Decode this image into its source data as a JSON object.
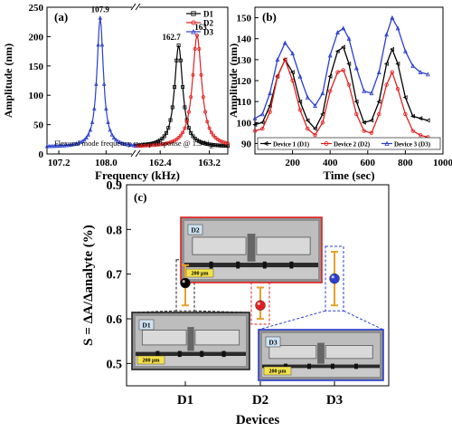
{
  "chart_data": [
    {
      "panel": "(a)",
      "type": "line",
      "xlabel": "Frequency (kHz)",
      "ylabel": "Amplitude (nm)",
      "ylim": [
        0,
        250
      ],
      "yticks": [
        "0",
        "50",
        "100",
        "150",
        "200",
        "250"
      ],
      "xlim_left": [
        107.0,
        108.5
      ],
      "xlim_right": [
        162.0,
        163.5
      ],
      "xticks_left": [
        "107.2",
        "108.0"
      ],
      "xticks_right": [
        "162.4",
        "163.2"
      ],
      "annotation": "Flexural mode frequency sweep response @ 1.5 V",
      "annotation_subscript": "ac",
      "legend": [
        "D1",
        "D2",
        "D3"
      ],
      "peak_labels": [
        "107.9",
        "162.7",
        "163"
      ],
      "series": [
        {
          "name": "D1",
          "color": "#000000",
          "marker": "square",
          "peak_x": 162.7,
          "peak_y": 185,
          "hwhm": 0.08,
          "base_y": 12
        },
        {
          "name": "D2",
          "color": "#e02020",
          "marker": "circle",
          "peak_x": 163.0,
          "peak_y": 202,
          "hwhm": 0.09,
          "base_y": 12
        },
        {
          "name": "D3",
          "color": "#2a3fcf",
          "marker": "triangle",
          "peak_x": 107.9,
          "peak_y": 232,
          "hwhm": 0.065,
          "base_y": 12
        }
      ]
    },
    {
      "panel": "(b)",
      "type": "line",
      "xlabel": "Time (sec)",
      "ylabel": "Amplitude (nm)",
      "xlim": [
        0,
        1000
      ],
      "ylim": [
        85,
        155
      ],
      "xticks": [
        "200",
        "400",
        "600",
        "800",
        "1000"
      ],
      "yticks": [
        "90",
        "100",
        "110",
        "120",
        "130",
        "140",
        "150"
      ],
      "legend": [
        "Device 1 (D1)",
        "Device 2 (D2)",
        "Device 3 (D3)"
      ],
      "series": [
        {
          "name": "Device 1 (D1)",
          "color": "#000000",
          "marker": "triangle-left",
          "x": [
            0,
            40,
            80,
            120,
            160,
            200,
            240,
            280,
            320,
            360,
            400,
            440,
            470,
            500,
            540,
            580,
            620,
            660,
            700,
            730,
            760,
            800,
            840,
            880,
            920
          ],
          "y": [
            99,
            100,
            108,
            122,
            130,
            124,
            110,
            101,
            97,
            104,
            122,
            134,
            136,
            128,
            110,
            100,
            101,
            110,
            128,
            135,
            128,
            112,
            103,
            102,
            101
          ]
        },
        {
          "name": "Device 2 (D2)",
          "color": "#e02020",
          "marker": "circle",
          "x": [
            0,
            40,
            80,
            120,
            160,
            200,
            240,
            280,
            320,
            360,
            400,
            440,
            470,
            500,
            540,
            580,
            620,
            660,
            700,
            730,
            760,
            800,
            840,
            880,
            920
          ],
          "y": [
            96,
            97,
            105,
            122,
            130,
            120,
            106,
            97,
            94,
            100,
            115,
            124,
            125,
            118,
            104,
            96,
            95,
            104,
            118,
            124,
            116,
            104,
            96,
            94,
            93
          ]
        },
        {
          "name": "Device 3 (D3)",
          "color": "#2a3fcf",
          "marker": "triangle",
          "x": [
            0,
            40,
            80,
            120,
            160,
            200,
            240,
            280,
            320,
            360,
            400,
            440,
            470,
            500,
            540,
            580,
            620,
            660,
            700,
            730,
            760,
            800,
            840,
            880,
            920
          ],
          "y": [
            102,
            104,
            114,
            130,
            138,
            133,
            122,
            112,
            108,
            114,
            132,
            143,
            145,
            140,
            126,
            115,
            114,
            124,
            142,
            150,
            145,
            134,
            127,
            124,
            123
          ]
        }
      ]
    },
    {
      "panel": "(c)",
      "type": "scatter",
      "xlabel": "Devices",
      "ylabel": "S = ΔA/Δanalyte (%)",
      "ylim": [
        0.45,
        0.9
      ],
      "yticks": [
        "0.5",
        "0.6",
        "0.7",
        "0.8",
        "0.9"
      ],
      "categories": [
        "D1",
        "D2",
        "D3"
      ],
      "series": [
        {
          "name": "D1",
          "color": "#000000",
          "value": 0.68,
          "err_low": 0.63,
          "err_high": 0.72
        },
        {
          "name": "D2",
          "color": "#e02020",
          "value": 0.63,
          "err_low": 0.6,
          "err_high": 0.67
        },
        {
          "name": "D3",
          "color": "#2a3fcf",
          "value": 0.69,
          "err_low": 0.63,
          "err_high": 0.75
        }
      ],
      "insets": [
        {
          "label": "D1",
          "scale": "200 μm",
          "border": "#222222"
        },
        {
          "label": "D2",
          "scale": "200 μm",
          "border": "#e02020"
        },
        {
          "label": "D3",
          "scale": "200 μm",
          "border": "#2a3fcf"
        }
      ],
      "error_bar_color": "#e8a02a"
    }
  ]
}
